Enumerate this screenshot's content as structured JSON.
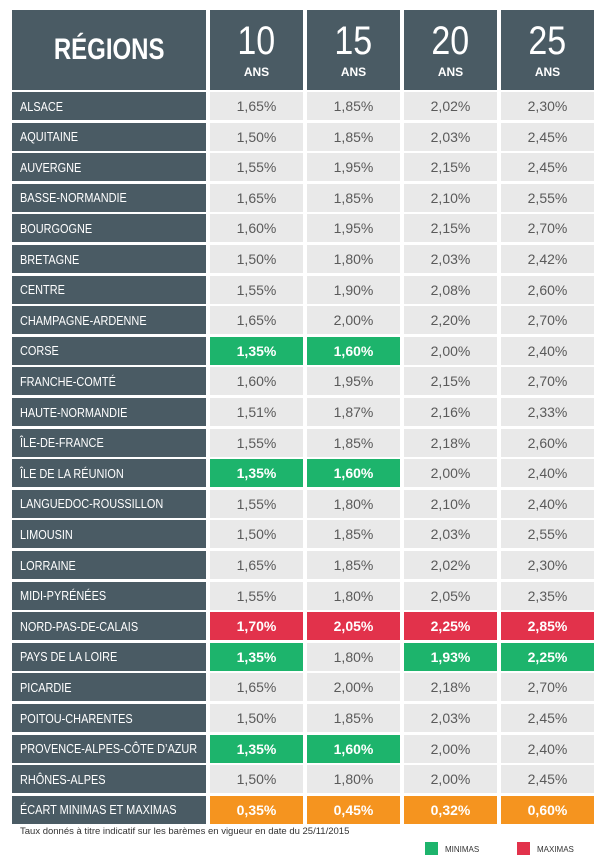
{
  "header": {
    "region": "RÉGIONS",
    "columns": [
      {
        "years": "10",
        "unit": "ANS"
      },
      {
        "years": "15",
        "unit": "ANS"
      },
      {
        "years": "20",
        "unit": "ANS"
      },
      {
        "years": "25",
        "unit": "ANS"
      }
    ]
  },
  "colors": {
    "min": "#1db46c",
    "max": "#e2324b",
    "gap": "#f5941f"
  },
  "rows": [
    {
      "region": "ALSACE",
      "values": [
        "1,65%",
        "1,85%",
        "2,02%",
        "2,30%"
      ],
      "highlight": [
        null,
        null,
        null,
        null
      ]
    },
    {
      "region": "AQUITAINE",
      "values": [
        "1,50%",
        "1,85%",
        "2,03%",
        "2,45%"
      ],
      "highlight": [
        null,
        null,
        null,
        null
      ]
    },
    {
      "region": "AUVERGNE",
      "values": [
        "1,55%",
        "1,95%",
        "2,15%",
        "2,45%"
      ],
      "highlight": [
        null,
        null,
        null,
        null
      ]
    },
    {
      "region": "BASSE-NORMANDIE",
      "values": [
        "1,65%",
        "1,85%",
        "2,10%",
        "2,55%"
      ],
      "highlight": [
        null,
        null,
        null,
        null
      ]
    },
    {
      "region": "BOURGOGNE",
      "values": [
        "1,60%",
        "1,95%",
        "2,15%",
        "2,70%"
      ],
      "highlight": [
        null,
        null,
        null,
        null
      ]
    },
    {
      "region": "BRETAGNE",
      "values": [
        "1,50%",
        "1,80%",
        "2,03%",
        "2,42%"
      ],
      "highlight": [
        null,
        null,
        null,
        null
      ]
    },
    {
      "region": "CENTRE",
      "values": [
        "1,55%",
        "1,90%",
        "2,08%",
        "2,60%"
      ],
      "highlight": [
        null,
        null,
        null,
        null
      ]
    },
    {
      "region": "CHAMPAGNE-ARDENNE",
      "values": [
        "1,65%",
        "2,00%",
        "2,20%",
        "2,70%"
      ],
      "highlight": [
        null,
        null,
        null,
        null
      ]
    },
    {
      "region": "CORSE",
      "values": [
        "1,35%",
        "1,60%",
        "2,00%",
        "2,40%"
      ],
      "highlight": [
        "min",
        "min",
        null,
        null
      ]
    },
    {
      "region": "FRANCHE-COMTÉ",
      "values": [
        "1,60%",
        "1,95%",
        "2,15%",
        "2,70%"
      ],
      "highlight": [
        null,
        null,
        null,
        null
      ]
    },
    {
      "region": "HAUTE-NORMANDIE",
      "values": [
        "1,51%",
        "1,87%",
        "2,16%",
        "2,33%"
      ],
      "highlight": [
        null,
        null,
        null,
        null
      ]
    },
    {
      "region": "ÎLE-DE-FRANCE",
      "values": [
        "1,55%",
        "1,85%",
        "2,18%",
        "2,60%"
      ],
      "highlight": [
        null,
        null,
        null,
        null
      ]
    },
    {
      "region": "ÎLE DE LA RÉUNION",
      "values": [
        "1,35%",
        "1,60%",
        "2,00%",
        "2,40%"
      ],
      "highlight": [
        "min",
        "min",
        null,
        null
      ]
    },
    {
      "region": "LANGUEDOC-ROUSSILLON",
      "values": [
        "1,55%",
        "1,80%",
        "2,10%",
        "2,40%"
      ],
      "highlight": [
        null,
        null,
        null,
        null
      ]
    },
    {
      "region": "LIMOUSIN",
      "values": [
        "1,50%",
        "1,85%",
        "2,03%",
        "2,55%"
      ],
      "highlight": [
        null,
        null,
        null,
        null
      ]
    },
    {
      "region": "LORRAINE",
      "values": [
        "1,65%",
        "1,85%",
        "2,02%",
        "2,30%"
      ],
      "highlight": [
        null,
        null,
        null,
        null
      ]
    },
    {
      "region": "MIDI-PYRÉNÉES",
      "values": [
        "1,55%",
        "1,80%",
        "2,05%",
        "2,35%"
      ],
      "highlight": [
        null,
        null,
        null,
        null
      ]
    },
    {
      "region": "NORD-PAS-DE-CALAIS",
      "values": [
        "1,70%",
        "2,05%",
        "2,25%",
        "2,85%"
      ],
      "highlight": [
        "max",
        "max",
        "max",
        "max"
      ]
    },
    {
      "region": "PAYS DE LA LOIRE",
      "values": [
        "1,35%",
        "1,80%",
        "1,93%",
        "2,25%"
      ],
      "highlight": [
        "min",
        null,
        "min",
        "min"
      ]
    },
    {
      "region": "PICARDIE",
      "values": [
        "1,65%",
        "2,00%",
        "2,18%",
        "2,70%"
      ],
      "highlight": [
        null,
        null,
        null,
        null
      ]
    },
    {
      "region": "POITOU-CHARENTES",
      "values": [
        "1,50%",
        "1,85%",
        "2,03%",
        "2,45%"
      ],
      "highlight": [
        null,
        null,
        null,
        null
      ]
    },
    {
      "region": "PROVENCE-ALPES-CÔTE D’AZUR",
      "values": [
        "1,35%",
        "1,60%",
        "2,00%",
        "2,40%"
      ],
      "highlight": [
        "min",
        "min",
        null,
        null
      ]
    },
    {
      "region": "RHÔNES-ALPES",
      "values": [
        "1,50%",
        "1,80%",
        "2,00%",
        "2,45%"
      ],
      "highlight": [
        null,
        null,
        null,
        null
      ]
    },
    {
      "region": "ÉCART MINIMAS ET MAXIMAS",
      "values": [
        "0,35%",
        "0,45%",
        "0,32%",
        "0,60%"
      ],
      "highlight": [
        "gap",
        "gap",
        "gap",
        "gap"
      ]
    }
  ],
  "footnote": "Taux donnés à titre indicatif sur les barèmes en vigueur en date du 25/11/2015",
  "legend": [
    {
      "label": "MINIMAS",
      "key": "min"
    },
    {
      "label": "MAXIMAS",
      "key": "max"
    }
  ]
}
